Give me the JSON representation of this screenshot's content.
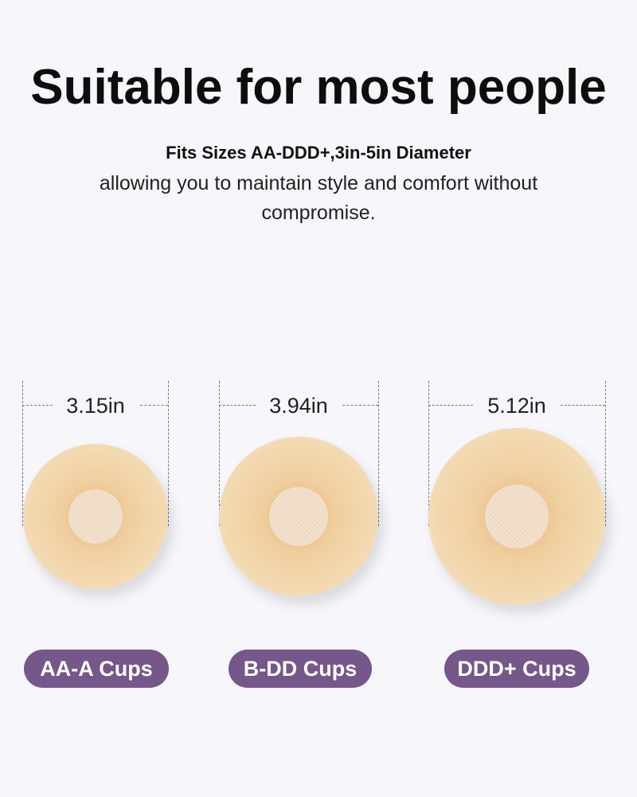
{
  "header": {
    "title": "Suitable for most people",
    "subtitle": "Fits Sizes AA-DDD+,3in-5in Diameter",
    "description": "allowing you to maintain style and comfort without compromise."
  },
  "sizes": [
    {
      "diameter": "3.15in",
      "label": "AA-A Cups"
    },
    {
      "diameter": "3.94in",
      "label": "B-DD Cups"
    },
    {
      "diameter": "5.12in",
      "label": "DDD+ Cups"
    }
  ],
  "colors": {
    "background": "#f6f6fb",
    "pill": "#76578a",
    "pill_text": "#ffffff"
  }
}
